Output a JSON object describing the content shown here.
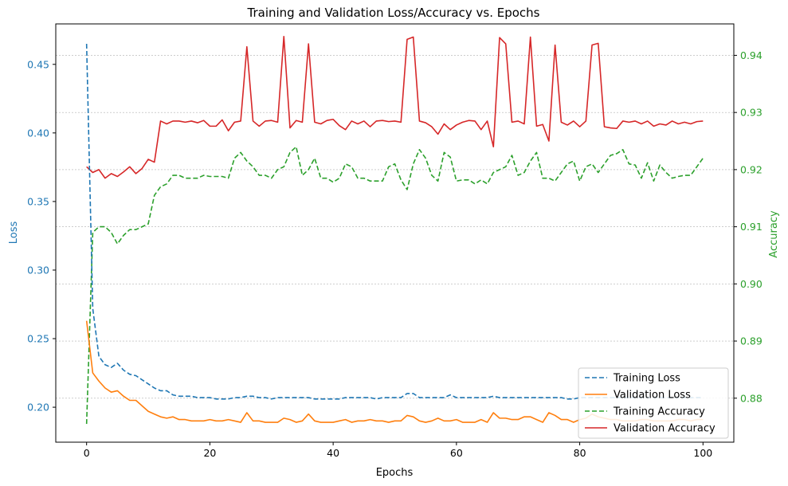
{
  "chart_data": {
    "type": "line",
    "title": "Training and Validation Loss/Accuracy vs. Epochs",
    "xlabel": "Epochs",
    "ylabel_left": "Loss",
    "ylabel_right": "Accuracy",
    "xlim": [
      -5,
      105
    ],
    "ylim_left": [
      0.1745,
      0.4795
    ],
    "ylim_right": [
      0.8723,
      0.9455
    ],
    "x_ticks": [
      0,
      20,
      40,
      60,
      80,
      100
    ],
    "y_left_ticks": [
      0.2,
      0.25,
      0.3,
      0.35,
      0.4,
      0.45
    ],
    "y_right_ticks": [
      0.88,
      0.89,
      0.9,
      0.91,
      0.92,
      0.93,
      0.94
    ],
    "grid": "horizontal dashed gray at right-axis ticks",
    "legend_position": "lower-right",
    "colors": {
      "training_loss": "#1f77b4",
      "validation_loss": "#ff7f0e",
      "training_accuracy": "#2ca02c",
      "validation_accuracy": "#d62728",
      "left_axis": "#1f77b4",
      "right_axis": "#2ca02c"
    },
    "series": [
      {
        "name": "Training Loss",
        "axis": "left",
        "style": "dashed",
        "color": "#1f77b4",
        "values": [
          0.465,
          0.272,
          0.237,
          0.231,
          0.229,
          0.232,
          0.227,
          0.224,
          0.223,
          0.22,
          0.217,
          0.214,
          0.212,
          0.212,
          0.209,
          0.208,
          0.208,
          0.208,
          0.207,
          0.207,
          0.207,
          0.206,
          0.206,
          0.206,
          0.207,
          0.207,
          0.208,
          0.208,
          0.207,
          0.207,
          0.206,
          0.207,
          0.207,
          0.207,
          0.207,
          0.207,
          0.207,
          0.206,
          0.206,
          0.206,
          0.206,
          0.206,
          0.207,
          0.207,
          0.207,
          0.207,
          0.207,
          0.206,
          0.207,
          0.207,
          0.207,
          0.207,
          0.21,
          0.21,
          0.207,
          0.207,
          0.207,
          0.207,
          0.207,
          0.209,
          0.207,
          0.207,
          0.207,
          0.207,
          0.207,
          0.207,
          0.208,
          0.207,
          0.207,
          0.207,
          0.207,
          0.207,
          0.207,
          0.207,
          0.207,
          0.207,
          0.207,
          0.207,
          0.206,
          0.206,
          0.207,
          0.207,
          0.207,
          0.207,
          0.207,
          0.207,
          0.207,
          0.207,
          0.207,
          0.207,
          0.207,
          0.207,
          0.207,
          0.207,
          0.207,
          0.207,
          0.207,
          0.207,
          0.207,
          0.207,
          0.207
        ]
      },
      {
        "name": "Validation Loss",
        "axis": "left",
        "style": "solid",
        "color": "#ff7f0e",
        "values": [
          0.263,
          0.225,
          0.219,
          0.214,
          0.211,
          0.212,
          0.208,
          0.205,
          0.205,
          0.201,
          0.197,
          0.195,
          0.193,
          0.192,
          0.193,
          0.191,
          0.191,
          0.19,
          0.19,
          0.19,
          0.191,
          0.19,
          0.19,
          0.191,
          0.19,
          0.189,
          0.196,
          0.19,
          0.19,
          0.189,
          0.189,
          0.189,
          0.192,
          0.191,
          0.189,
          0.19,
          0.195,
          0.19,
          0.189,
          0.189,
          0.189,
          0.19,
          0.191,
          0.189,
          0.19,
          0.19,
          0.191,
          0.19,
          0.19,
          0.189,
          0.19,
          0.19,
          0.194,
          0.193,
          0.19,
          0.189,
          0.19,
          0.192,
          0.19,
          0.19,
          0.191,
          0.189,
          0.189,
          0.189,
          0.191,
          0.189,
          0.196,
          0.192,
          0.192,
          0.191,
          0.191,
          0.193,
          0.193,
          0.191,
          0.189,
          0.196,
          0.194,
          0.191,
          0.191,
          0.189,
          0.191,
          0.192,
          0.195,
          0.193,
          0.192,
          0.191,
          0.191,
          0.19,
          0.19,
          0.19,
          0.191,
          0.191,
          0.19,
          0.19,
          0.19,
          0.19,
          0.191,
          0.191,
          0.19,
          0.191,
          0.191
        ]
      },
      {
        "name": "Training Accuracy",
        "axis": "right",
        "style": "dashed",
        "color": "#2ca02c",
        "values": [
          0.8755,
          0.909,
          0.91,
          0.91,
          0.909,
          0.907,
          0.9085,
          0.9095,
          0.9095,
          0.91,
          0.9105,
          0.9155,
          0.917,
          0.9175,
          0.919,
          0.919,
          0.9185,
          0.9185,
          0.9185,
          0.919,
          0.9188,
          0.9188,
          0.9188,
          0.9185,
          0.922,
          0.923,
          0.9215,
          0.9205,
          0.919,
          0.919,
          0.9185,
          0.92,
          0.9205,
          0.923,
          0.924,
          0.919,
          0.92,
          0.922,
          0.9185,
          0.9185,
          0.9178,
          0.9185,
          0.921,
          0.9205,
          0.9185,
          0.9185,
          0.918,
          0.918,
          0.918,
          0.9205,
          0.921,
          0.9182,
          0.9165,
          0.921,
          0.9235,
          0.922,
          0.919,
          0.918,
          0.923,
          0.9222,
          0.918,
          0.9182,
          0.9182,
          0.9175,
          0.9182,
          0.9175,
          0.9195,
          0.92,
          0.9205,
          0.9225,
          0.919,
          0.9195,
          0.9215,
          0.923,
          0.9185,
          0.9185,
          0.918,
          0.9195,
          0.921,
          0.9215,
          0.918,
          0.9205,
          0.921,
          0.9195,
          0.921,
          0.9225,
          0.9228,
          0.9235,
          0.921,
          0.9208,
          0.9185,
          0.9212,
          0.918,
          0.9208,
          0.9195,
          0.9185,
          0.9188,
          0.919,
          0.919,
          0.9205,
          0.922
        ]
      },
      {
        "name": "Validation Accuracy",
        "axis": "right",
        "style": "solid",
        "color": "#d62728",
        "values": [
          0.9205,
          0.9195,
          0.92,
          0.9185,
          0.9193,
          0.9188,
          0.9196,
          0.9205,
          0.9193,
          0.9202,
          0.9218,
          0.9213,
          0.9285,
          0.928,
          0.9285,
          0.9285,
          0.9283,
          0.9285,
          0.9282,
          0.9286,
          0.9276,
          0.9276,
          0.9287,
          0.9268,
          0.9283,
          0.9285,
          0.9415,
          0.9285,
          0.9276,
          0.9285,
          0.9286,
          0.9283,
          0.9433,
          0.9273,
          0.9286,
          0.9283,
          0.942,
          0.9283,
          0.928,
          0.9286,
          0.9288,
          0.9277,
          0.927,
          0.9285,
          0.928,
          0.9285,
          0.9275,
          0.9285,
          0.9286,
          0.9284,
          0.9285,
          0.9283,
          0.9428,
          0.9432,
          0.9285,
          0.9282,
          0.9275,
          0.9262,
          0.928,
          0.927,
          0.9278,
          0.9283,
          0.9286,
          0.9285,
          0.927,
          0.9285,
          0.924,
          0.9431,
          0.942,
          0.9283,
          0.9285,
          0.928,
          0.9432,
          0.9276,
          0.9279,
          0.925,
          0.9418,
          0.9283,
          0.9278,
          0.9285,
          0.9275,
          0.9285,
          0.9418,
          0.9421,
          0.9275,
          0.9273,
          0.9272,
          0.9285,
          0.9283,
          0.9285,
          0.928,
          0.9285,
          0.9276,
          0.928,
          0.9278,
          0.9285,
          0.928,
          0.9283,
          0.928,
          0.9284,
          0.9285
        ]
      }
    ]
  }
}
